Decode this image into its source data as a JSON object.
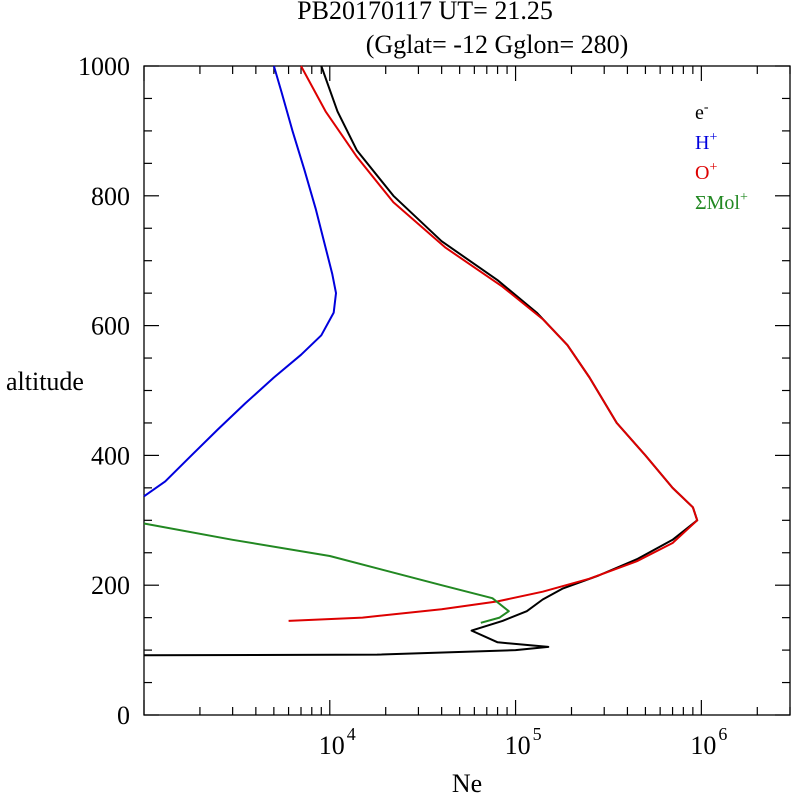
{
  "chart_data": {
    "type": "line",
    "title_line1": "PB20170117   UT=  21.25",
    "title_line2": "(Gglat= -12   Gglon=  280)",
    "xlabel": "Ne",
    "ylabel": "altitude",
    "x_scale": "log",
    "xlim": [
      1000,
      3000000
    ],
    "ylim": [
      0,
      1000
    ],
    "x_tick_labels": [
      {
        "base": "10",
        "exp": "4",
        "value": 10000
      },
      {
        "base": "10",
        "exp": "5",
        "value": 100000
      },
      {
        "base": "10",
        "exp": "6",
        "value": 1000000
      }
    ],
    "y_ticks": [
      0,
      200,
      400,
      600,
      800,
      1000
    ],
    "y_tick_labels": [
      "0",
      "200",
      "400",
      "600",
      "800",
      "1000"
    ],
    "legend": {
      "position": "top-right",
      "entries": [
        {
          "base": "e",
          "sup": "-",
          "color": "#000000"
        },
        {
          "base": "H",
          "sup": "+",
          "color": "#0000dd"
        },
        {
          "base": "O",
          "sup": "+",
          "color": "#dd0000"
        },
        {
          "base": "ΣMol",
          "sup": "+",
          "color": "#228822"
        }
      ]
    },
    "series": [
      {
        "name": "e-",
        "color": "#000000",
        "points": [
          [
            1000,
            92
          ],
          [
            18000,
            93
          ],
          [
            100000,
            100
          ],
          [
            150000,
            105
          ],
          [
            80000,
            112
          ],
          [
            58000,
            130
          ],
          [
            85000,
            145
          ],
          [
            115000,
            160
          ],
          [
            140000,
            178
          ],
          [
            180000,
            195
          ],
          [
            280000,
            215
          ],
          [
            450000,
            240
          ],
          [
            700000,
            270
          ],
          [
            950000,
            300
          ],
          [
            900000,
            320
          ],
          [
            700000,
            350
          ],
          [
            500000,
            400
          ],
          [
            350000,
            450
          ],
          [
            250000,
            520
          ],
          [
            190000,
            570
          ],
          [
            130000,
            620
          ],
          [
            80000,
            670
          ],
          [
            40000,
            730
          ],
          [
            22000,
            800
          ],
          [
            14000,
            870
          ],
          [
            11000,
            930
          ],
          [
            9000,
            1000
          ]
        ]
      },
      {
        "name": "H+",
        "color": "#0000dd",
        "points": [
          [
            1000,
            337
          ],
          [
            1300,
            360
          ],
          [
            1800,
            400
          ],
          [
            2500,
            440
          ],
          [
            3500,
            480
          ],
          [
            5000,
            520
          ],
          [
            7000,
            555
          ],
          [
            9000,
            585
          ],
          [
            10500,
            620
          ],
          [
            10800,
            650
          ],
          [
            10300,
            680
          ],
          [
            9500,
            720
          ],
          [
            8400,
            780
          ],
          [
            7300,
            840
          ],
          [
            6300,
            900
          ],
          [
            5500,
            960
          ],
          [
            5000,
            1000
          ]
        ]
      },
      {
        "name": "O+",
        "color": "#dd0000",
        "points": [
          [
            6000,
            145
          ],
          [
            15000,
            150
          ],
          [
            40000,
            163
          ],
          [
            80000,
            175
          ],
          [
            140000,
            190
          ],
          [
            250000,
            210
          ],
          [
            450000,
            237
          ],
          [
            700000,
            265
          ],
          [
            950000,
            300
          ],
          [
            900000,
            320
          ],
          [
            700000,
            350
          ],
          [
            500000,
            400
          ],
          [
            350000,
            450
          ],
          [
            250000,
            520
          ],
          [
            190000,
            570
          ],
          [
            140000,
            610
          ],
          [
            85000,
            660
          ],
          [
            42000,
            720
          ],
          [
            22000,
            790
          ],
          [
            14000,
            860
          ],
          [
            9500,
            930
          ],
          [
            7000,
            1000
          ]
        ]
      },
      {
        "name": "ΣMol+",
        "color": "#228822",
        "points": [
          [
            1000,
            295
          ],
          [
            3000,
            270
          ],
          [
            10000,
            245
          ],
          [
            40000,
            200
          ],
          [
            75000,
            180
          ],
          [
            92000,
            160
          ],
          [
            82000,
            150
          ],
          [
            65000,
            142
          ]
        ]
      }
    ]
  }
}
